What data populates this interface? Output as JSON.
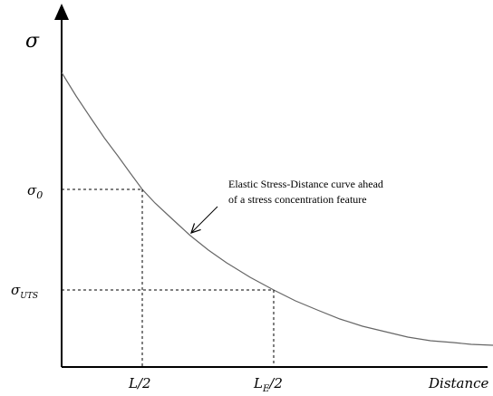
{
  "axes": {
    "y_label": "σ",
    "x_label": "Distance"
  },
  "y_markers": [
    {
      "main": "σ",
      "sub": "0"
    },
    {
      "main": "σ",
      "sub": "UTS"
    }
  ],
  "x_markers": [
    {
      "main": "L",
      "sub": "",
      "rest": "/2"
    },
    {
      "main": "L",
      "sub": "E",
      "rest": "/2"
    }
  ],
  "annotation": [
    "Elastic Stress-Distance curve ahead",
    "of a stress concentration feature"
  ]
}
